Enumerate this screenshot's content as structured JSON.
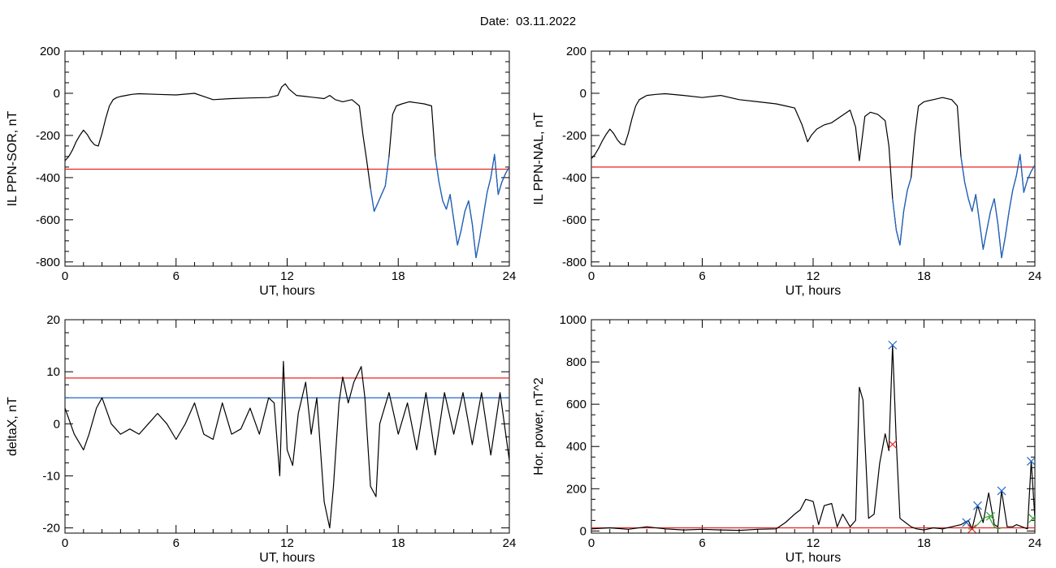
{
  "figure": {
    "date_label": "Date:  03.11.2022"
  },
  "chart_data": [
    {
      "id": "p1",
      "type": "line",
      "xlabel": "UT, hours",
      "ylabel": "IL PPN-SOR, nT",
      "xlim": [
        0,
        24
      ],
      "ylim": [
        -820,
        200
      ],
      "xticks": [
        0,
        6,
        12,
        18,
        24
      ],
      "yticks": [
        -800,
        -600,
        -400,
        -200,
        0,
        200
      ],
      "thresholds": [
        {
          "value": -360,
          "color": "#e8231f"
        }
      ],
      "series": [
        {
          "color": "#000000",
          "x": [
            0,
            0.2,
            0.4,
            0.6,
            0.8,
            1.0,
            1.2,
            1.4,
            1.6,
            1.8,
            2.0,
            2.2,
            2.4,
            2.6,
            2.8,
            3.0,
            3.3,
            3.6,
            4,
            5,
            6,
            7,
            7.5,
            8,
            9,
            10,
            11,
            11.5,
            11.7,
            11.9,
            12.1,
            12.5,
            13,
            13.5,
            14,
            14.3,
            14.6,
            15,
            15.5,
            15.9,
            16.1,
            16.3,
            16.5,
            16.7,
            16.9,
            17.1,
            17.3,
            17.5,
            17.7,
            17.9,
            18.2,
            18.6,
            19,
            19.4,
            19.8,
            20.0,
            20.2,
            20.4,
            20.6,
            20.8,
            21.0,
            21.2,
            21.4,
            21.6,
            21.8,
            22.0,
            22.2,
            22.4,
            22.6,
            22.8,
            23.0,
            23.2,
            23.4,
            23.6,
            23.8,
            24.0
          ],
          "y": [
            -320,
            -300,
            -270,
            -230,
            -200,
            -175,
            -195,
            -225,
            -245,
            -250,
            -190,
            -120,
            -60,
            -30,
            -20,
            -15,
            -10,
            -5,
            -2,
            -5,
            -8,
            0,
            -15,
            -30,
            -25,
            -22,
            -20,
            -10,
            30,
            45,
            20,
            -10,
            -15,
            -20,
            -25,
            -10,
            -30,
            -40,
            -30,
            -60,
            -200,
            -320,
            -450,
            -560,
            -520,
            -480,
            -440,
            -300,
            -100,
            -60,
            -50,
            -40,
            -45,
            -50,
            -60,
            -300,
            -420,
            -510,
            -550,
            -480,
            -600,
            -720,
            -650,
            -560,
            -510,
            -620,
            -780,
            -690,
            -580,
            -470,
            -400,
            -290,
            -480,
            -420,
            -380,
            -350
          ]
        },
        {
          "color": "#1f66c8",
          "x": [
            16.5,
            16.7,
            16.9,
            17.1,
            17.3,
            17.5
          ],
          "y": [
            -450,
            -560,
            -520,
            -480,
            -440,
            -300
          ]
        },
        {
          "color": "#1f66c8",
          "x": [
            20.0,
            20.2,
            20.4,
            20.6,
            20.8,
            21.0,
            21.2,
            21.4,
            21.6,
            21.8,
            22.0,
            22.2,
            22.4,
            22.6,
            22.8,
            23.0,
            23.2,
            23.4,
            23.6,
            23.8,
            24.0
          ],
          "y": [
            -300,
            -420,
            -510,
            -550,
            -480,
            -600,
            -720,
            -650,
            -560,
            -510,
            -620,
            -780,
            -690,
            -580,
            -470,
            -400,
            -290,
            -480,
            -420,
            -380,
            -350
          ]
        }
      ]
    },
    {
      "id": "p2",
      "type": "line",
      "xlabel": "UT, hours",
      "ylabel": "IL PPN-NAL, nT",
      "xlim": [
        0,
        24
      ],
      "ylim": [
        -820,
        200
      ],
      "xticks": [
        0,
        6,
        12,
        18,
        24
      ],
      "yticks": [
        -800,
        -600,
        -400,
        -200,
        0,
        200
      ],
      "thresholds": [
        {
          "value": -350,
          "color": "#e8231f"
        }
      ],
      "series": [
        {
          "color": "#000000",
          "x": [
            0,
            0.2,
            0.4,
            0.6,
            0.8,
            1.0,
            1.2,
            1.4,
            1.6,
            1.8,
            2.0,
            2.2,
            2.4,
            2.6,
            2.8,
            3.0,
            3.5,
            4,
            5,
            6,
            7,
            8,
            9,
            10,
            10.5,
            11,
            11.4,
            11.7,
            11.9,
            12.2,
            12.6,
            13,
            13.5,
            14,
            14.3,
            14.5,
            14.8,
            15.1,
            15.5,
            15.9,
            16.1,
            16.3,
            16.5,
            16.7,
            16.9,
            17.1,
            17.3,
            17.5,
            17.7,
            18,
            18.5,
            19,
            19.5,
            19.8,
            20.0,
            20.2,
            20.4,
            20.6,
            20.8,
            21.0,
            21.2,
            21.4,
            21.6,
            21.8,
            22.0,
            22.2,
            22.4,
            22.6,
            22.8,
            23.0,
            23.2,
            23.4,
            23.6,
            23.8,
            24.0
          ],
          "y": [
            -310,
            -290,
            -260,
            -225,
            -195,
            -170,
            -190,
            -220,
            -240,
            -245,
            -190,
            -120,
            -60,
            -30,
            -20,
            -10,
            -5,
            -2,
            -10,
            -20,
            -10,
            -30,
            -40,
            -50,
            -60,
            -70,
            -150,
            -230,
            -200,
            -170,
            -150,
            -140,
            -110,
            -80,
            -160,
            -320,
            -110,
            -90,
            -100,
            -130,
            -250,
            -500,
            -650,
            -720,
            -560,
            -460,
            -400,
            -200,
            -60,
            -40,
            -30,
            -20,
            -30,
            -60,
            -300,
            -420,
            -500,
            -560,
            -480,
            -610,
            -740,
            -650,
            -560,
            -500,
            -620,
            -780,
            -680,
            -560,
            -460,
            -390,
            -290,
            -470,
            -410,
            -370,
            -340
          ]
        },
        {
          "color": "#1f66c8",
          "x": [
            16.3,
            16.5,
            16.7,
            16.9,
            17.1,
            17.3
          ],
          "y": [
            -500,
            -650,
            -720,
            -560,
            -460,
            -400
          ]
        },
        {
          "color": "#1f66c8",
          "x": [
            20.0,
            20.2,
            20.4,
            20.6,
            20.8,
            21.0,
            21.2,
            21.4,
            21.6,
            21.8,
            22.0,
            22.2,
            22.4,
            22.6,
            22.8,
            23.0,
            23.2,
            23.4,
            23.6,
            23.8,
            24.0
          ],
          "y": [
            -300,
            -420,
            -500,
            -560,
            -480,
            -610,
            -740,
            -650,
            -560,
            -500,
            -620,
            -780,
            -680,
            -560,
            -460,
            -390,
            -290,
            -470,
            -410,
            -370,
            -340
          ]
        }
      ]
    },
    {
      "id": "p3",
      "type": "line",
      "xlabel": "UT, hours",
      "ylabel": "deltaX, nT",
      "xlim": [
        0,
        24
      ],
      "ylim": [
        -21,
        20
      ],
      "xticks": [
        0,
        6,
        12,
        18,
        24
      ],
      "yticks": [
        -20,
        -10,
        0,
        10,
        20
      ],
      "thresholds": [
        {
          "value": 8.8,
          "color": "#e8231f"
        },
        {
          "value": 5,
          "color": "#1f66c8"
        }
      ],
      "series": [
        {
          "color": "#000000",
          "x": [
            0,
            0.5,
            1.0,
            1.3,
            1.7,
            2.0,
            2.5,
            3.0,
            3.5,
            4.0,
            4.5,
            5.0,
            5.5,
            6.0,
            6.5,
            7.0,
            7.5,
            8.0,
            8.5,
            9.0,
            9.5,
            10.0,
            10.5,
            11.0,
            11.3,
            11.6,
            11.8,
            12.0,
            12.3,
            12.6,
            13.0,
            13.3,
            13.6,
            14.0,
            14.3,
            14.5,
            14.8,
            15.0,
            15.3,
            15.6,
            16.0,
            16.2,
            16.5,
            16.8,
            17.0,
            17.5,
            18.0,
            18.5,
            19.0,
            19.5,
            20.0,
            20.5,
            21.0,
            21.5,
            22.0,
            22.5,
            23.0,
            23.5,
            24.0
          ],
          "y": [
            3,
            -2,
            -5,
            -2,
            3,
            5,
            0,
            -2,
            -1,
            -2,
            0,
            2,
            0,
            -3,
            0,
            4,
            -2,
            -3,
            4,
            -2,
            -1,
            3,
            -2,
            5,
            4,
            -10,
            12,
            -5,
            -8,
            2,
            8,
            -2,
            5,
            -15,
            -20,
            -12,
            4,
            9,
            4,
            8,
            11,
            5,
            -12,
            -14,
            0,
            6,
            -2,
            4,
            -5,
            6,
            -6,
            6,
            -2,
            6,
            -4,
            6,
            -6,
            6,
            -7
          ]
        }
      ]
    },
    {
      "id": "p4",
      "type": "line",
      "xlabel": "UT, hours",
      "ylabel": "Hor. power, nT^2",
      "xlim": [
        0,
        24
      ],
      "ylim": [
        -10,
        1000
      ],
      "xticks": [
        0,
        6,
        12,
        18,
        24
      ],
      "yticks": [
        0,
        200,
        400,
        600,
        800,
        1000
      ],
      "thresholds": [
        {
          "value": 15,
          "color": "#e8231f"
        }
      ],
      "series": [
        {
          "color": "#000000",
          "x": [
            0,
            1,
            2,
            3,
            4,
            5,
            6,
            7,
            8,
            9,
            10,
            10.5,
            11,
            11.3,
            11.6,
            12,
            12.3,
            12.6,
            13,
            13.3,
            13.6,
            14,
            14.3,
            14.5,
            14.7,
            15,
            15.3,
            15.6,
            15.9,
            16.1,
            16.3,
            16.5,
            16.7,
            17,
            17.3,
            17.6,
            18,
            18.5,
            19,
            19.5,
            20,
            20.4,
            20.6,
            20.9,
            21.2,
            21.5,
            21.8,
            22.0,
            22.2,
            22.5,
            22.8,
            23.0,
            23.3,
            23.6,
            23.8,
            24.0
          ],
          "y": [
            10,
            15,
            8,
            20,
            10,
            5,
            8,
            5,
            3,
            8,
            10,
            40,
            80,
            100,
            150,
            140,
            30,
            120,
            130,
            20,
            80,
            20,
            50,
            680,
            620,
            60,
            80,
            320,
            460,
            380,
            880,
            420,
            60,
            40,
            20,
            10,
            5,
            15,
            10,
            20,
            30,
            50,
            10,
            120,
            40,
            180,
            30,
            20,
            190,
            20,
            20,
            30,
            20,
            10,
            330,
            60
          ]
        },
        {
          "color": "#2ca02c",
          "x": [
            20.4,
            20.6,
            20.9,
            21.2,
            21.5,
            21.8,
            22.0,
            22.2
          ],
          "y": [
            10,
            8,
            30,
            60,
            70,
            20,
            10,
            15
          ]
        }
      ],
      "markers": [
        {
          "x": 16.3,
          "y": 880,
          "color": "#1f66c8"
        },
        {
          "x": 16.3,
          "y": 410,
          "color": "#e8231f"
        },
        {
          "x": 20.3,
          "y": 40,
          "color": "#1f66c8"
        },
        {
          "x": 20.9,
          "y": 120,
          "color": "#1f66c8"
        },
        {
          "x": 22.2,
          "y": 190,
          "color": "#1f66c8"
        },
        {
          "x": 23.8,
          "y": 330,
          "color": "#1f66c8"
        },
        {
          "x": 20.6,
          "y": 10,
          "color": "#e8231f"
        },
        {
          "x": 21.6,
          "y": 70,
          "color": "#2ca02c"
        },
        {
          "x": 23.9,
          "y": 60,
          "color": "#2ca02c"
        }
      ]
    }
  ]
}
